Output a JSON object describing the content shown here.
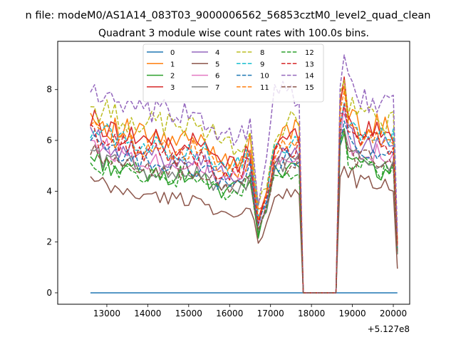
{
  "chart_data": {
    "type": "line",
    "suptitle": "n file: modeM0/AS1A14_083T03_9000006562_56853cztM0_level2_quad_clean",
    "title": "Quadrant 3 module wise count rates with 100.0s bins.",
    "xlabel": "",
    "ylabel": "",
    "x_offset_label": "+5.127e8",
    "xlim": [
      11800,
      20400
    ],
    "ylim": [
      -0.45,
      9.9
    ],
    "xticks": [
      13000,
      14000,
      15000,
      16000,
      17000,
      18000,
      19000,
      20000
    ],
    "xtick_labels": [
      "13000",
      "14000",
      "15000",
      "16000",
      "17000",
      "18000",
      "19000",
      "20000"
    ],
    "yticks": [
      0,
      2,
      4,
      6,
      8
    ],
    "ytick_labels": [
      "0",
      "2",
      "4",
      "6",
      "8"
    ],
    "legend_position": "top-center",
    "legend_columns": 4,
    "x_start": 12600,
    "x_step": 100,
    "x_count": 76,
    "gap_range": [
      17800,
      18600
    ],
    "knots_x": [
      12600,
      13100,
      13600,
      14100,
      14600,
      15100,
      15500,
      15700,
      16000,
      16300,
      16500,
      16700,
      16900,
      17100,
      17400,
      17600,
      17700,
      18700,
      18800,
      18900,
      19100,
      19400,
      19700,
      20000,
      20100
    ],
    "series": [
      {
        "name": "0",
        "color": "#1f77b4",
        "dash": "solid",
        "knots": [
          0,
          0,
          0,
          0,
          0,
          0,
          0,
          0,
          0,
          0,
          0,
          0,
          0,
          0,
          0,
          0,
          0,
          0,
          0,
          0,
          0,
          0,
          0,
          0,
          0
        ]
      },
      {
        "name": "1",
        "color": "#ff7f0e",
        "dash": "solid",
        "knots": [
          7.0,
          6.5,
          6.3,
          6.1,
          5.9,
          6.0,
          5.8,
          5.4,
          5.3,
          5.3,
          5.8,
          3.1,
          4.0,
          6.0,
          6.2,
          6.4,
          6.5,
          7.5,
          8.4,
          7.0,
          6.7,
          6.6,
          6.5,
          6.5,
          2.0
        ]
      },
      {
        "name": "2",
        "color": "#2ca02c",
        "dash": "solid",
        "knots": [
          5.4,
          5.0,
          4.8,
          4.6,
          4.6,
          4.7,
          4.3,
          3.9,
          4.0,
          4.2,
          4.4,
          2.2,
          3.3,
          4.8,
          5.0,
          5.1,
          5.2,
          5.5,
          6.6,
          5.5,
          5.0,
          4.9,
          4.8,
          4.8,
          1.5
        ]
      },
      {
        "name": "3",
        "color": "#d62728",
        "dash": "solid",
        "knots": [
          6.8,
          6.4,
          6.2,
          6.0,
          5.8,
          5.9,
          5.6,
          5.2,
          5.1,
          5.1,
          5.7,
          3.0,
          3.9,
          5.8,
          6.0,
          6.1,
          6.3,
          7.3,
          8.2,
          6.9,
          6.5,
          6.4,
          6.3,
          6.3,
          1.9
        ]
      },
      {
        "name": "4",
        "color": "#9467bd",
        "dash": "solid",
        "knots": [
          6.2,
          5.8,
          5.6,
          5.4,
          5.3,
          5.4,
          5.1,
          4.7,
          4.6,
          4.7,
          5.2,
          2.7,
          3.6,
          5.3,
          5.5,
          5.6,
          5.7,
          6.6,
          7.5,
          6.3,
          5.9,
          5.8,
          5.7,
          5.7,
          1.8
        ]
      },
      {
        "name": "5",
        "color": "#8c564b",
        "dash": "solid",
        "knots": [
          4.4,
          4.1,
          3.9,
          3.8,
          3.7,
          3.7,
          3.5,
          3.2,
          3.0,
          2.9,
          3.4,
          2.1,
          2.6,
          3.7,
          3.9,
          4.0,
          4.0,
          4.5,
          5.0,
          4.8,
          4.4,
          4.3,
          4.2,
          4.2,
          1.0
        ]
      },
      {
        "name": "6",
        "color": "#e377c2",
        "dash": "solid",
        "knots": [
          6.0,
          5.6,
          5.4,
          5.2,
          5.1,
          5.2,
          4.9,
          4.5,
          4.4,
          4.5,
          5.0,
          2.6,
          3.5,
          5.1,
          5.3,
          5.4,
          5.5,
          6.3,
          7.1,
          6.0,
          5.7,
          5.6,
          5.5,
          5.5,
          1.7
        ]
      },
      {
        "name": "7",
        "color": "#7f7f7f",
        "dash": "solid",
        "knots": [
          5.6,
          5.2,
          5.0,
          4.8,
          4.7,
          4.8,
          4.5,
          4.1,
          4.0,
          4.1,
          4.6,
          2.4,
          3.2,
          4.8,
          5.0,
          5.1,
          5.2,
          5.9,
          6.6,
          5.6,
          5.3,
          5.2,
          5.1,
          5.1,
          1.6
        ]
      },
      {
        "name": "8",
        "color": "#bcbd22",
        "dash": "dashed",
        "knots": [
          7.3,
          7.0,
          6.8,
          6.7,
          6.6,
          6.6,
          6.4,
          6.0,
          5.8,
          5.8,
          6.3,
          3.3,
          4.3,
          6.4,
          6.6,
          6.7,
          6.8,
          7.8,
          8.6,
          7.3,
          7.0,
          6.9,
          6.8,
          6.8,
          2.1
        ]
      },
      {
        "name": "9",
        "color": "#17becf",
        "dash": "dashed",
        "knots": [
          6.6,
          6.2,
          6.0,
          5.8,
          5.6,
          5.7,
          5.4,
          5.0,
          4.9,
          5.0,
          5.5,
          2.9,
          3.8,
          5.6,
          5.8,
          5.9,
          6.0,
          7.0,
          7.9,
          6.6,
          6.3,
          6.2,
          6.1,
          6.1,
          1.9
        ]
      },
      {
        "name": "10",
        "color": "#1f77b4",
        "dash": "dashed",
        "knots": [
          5.9,
          5.5,
          5.3,
          5.1,
          5.0,
          5.0,
          4.8,
          4.4,
          4.3,
          4.4,
          4.9,
          2.6,
          3.4,
          5.0,
          5.2,
          5.3,
          5.4,
          6.1,
          6.9,
          5.8,
          5.5,
          5.4,
          5.3,
          5.3,
          1.7
        ]
      },
      {
        "name": "11",
        "color": "#ff7f0e",
        "dash": "dashed",
        "knots": [
          6.5,
          6.1,
          5.9,
          5.7,
          5.6,
          5.6,
          5.3,
          4.9,
          4.8,
          4.9,
          5.4,
          2.8,
          3.7,
          5.5,
          5.7,
          5.8,
          5.9,
          6.8,
          7.7,
          6.5,
          6.2,
          6.1,
          6.0,
          6.0,
          1.9
        ]
      },
      {
        "name": "12",
        "color": "#2ca02c",
        "dash": "dashed",
        "knots": [
          5.2,
          4.9,
          4.7,
          4.6,
          4.5,
          4.5,
          4.3,
          4.0,
          3.9,
          4.0,
          4.4,
          2.3,
          3.1,
          4.6,
          4.8,
          4.9,
          5.0,
          5.6,
          6.3,
          5.3,
          5.0,
          4.9,
          4.8,
          4.8,
          1.5
        ]
      },
      {
        "name": "13",
        "color": "#d62728",
        "dash": "dashed",
        "knots": [
          6.3,
          5.9,
          5.7,
          5.5,
          5.4,
          5.4,
          5.2,
          4.8,
          4.7,
          4.8,
          5.3,
          2.8,
          3.6,
          5.4,
          5.6,
          5.7,
          5.8,
          6.7,
          7.5,
          6.3,
          6.0,
          5.9,
          5.8,
          5.8,
          1.8
        ]
      },
      {
        "name": "14",
        "color": "#9467bd",
        "dash": "dashed",
        "knots": [
          8.1,
          7.5,
          7.1,
          7.0,
          7.1,
          7.0,
          6.8,
          6.3,
          6.2,
          6.2,
          6.6,
          3.4,
          5.5,
          7.6,
          8.0,
          7.7,
          7.0,
          8.2,
          9.4,
          8.2,
          7.8,
          7.6,
          7.4,
          7.4,
          2.2
        ]
      },
      {
        "name": "15",
        "color": "#8c564b",
        "dash": "dashed",
        "knots": [
          5.5,
          5.2,
          5.0,
          4.9,
          4.8,
          4.8,
          4.6,
          4.2,
          4.1,
          4.2,
          4.7,
          2.5,
          3.3,
          4.9,
          5.1,
          5.2,
          5.3,
          6.0,
          6.7,
          5.6,
          5.3,
          5.2,
          5.1,
          5.1,
          1.6
        ]
      }
    ]
  }
}
